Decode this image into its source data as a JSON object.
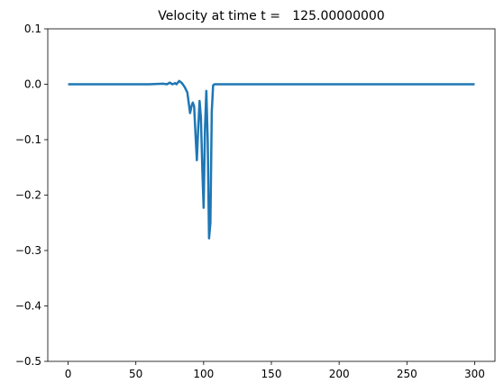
{
  "chart_data": {
    "type": "line",
    "title": "Velocity at time t =   125.00000000",
    "x": [
      0,
      60,
      70,
      73,
      75,
      77,
      79,
      80,
      82,
      84,
      86,
      88,
      90,
      91,
      92,
      93,
      94,
      95,
      96,
      97,
      98,
      99,
      100,
      101,
      102,
      103,
      104,
      105,
      106,
      107,
      108,
      300
    ],
    "series": [
      {
        "color": "#1f77b4",
        "values": [
          0,
          0,
          0.001,
          0,
          0.003,
          0,
          0.002,
          0,
          0.006,
          0.002,
          -0.005,
          -0.015,
          -0.052,
          -0.04,
          -0.033,
          -0.04,
          -0.09,
          -0.137,
          -0.08,
          -0.03,
          -0.06,
          -0.15,
          -0.223,
          -0.08,
          -0.012,
          -0.1,
          -0.278,
          -0.25,
          -0.05,
          -0.002,
          0,
          0
        ]
      }
    ],
    "xlim": [
      -15,
      315
    ],
    "ylim": [
      -0.5,
      0.1
    ],
    "xticks": [
      0,
      50,
      100,
      150,
      200,
      250,
      300
    ],
    "yticks": [
      {
        "value": -0.5,
        "label": "−0.5"
      },
      {
        "value": -0.4,
        "label": "−0.4"
      },
      {
        "value": -0.3,
        "label": "−0.3"
      },
      {
        "value": -0.2,
        "label": "−0.2"
      },
      {
        "value": -0.1,
        "label": "−0.1"
      },
      {
        "value": 0.0,
        "label": "0.0"
      },
      {
        "value": 0.1,
        "label": "0.1"
      }
    ]
  }
}
